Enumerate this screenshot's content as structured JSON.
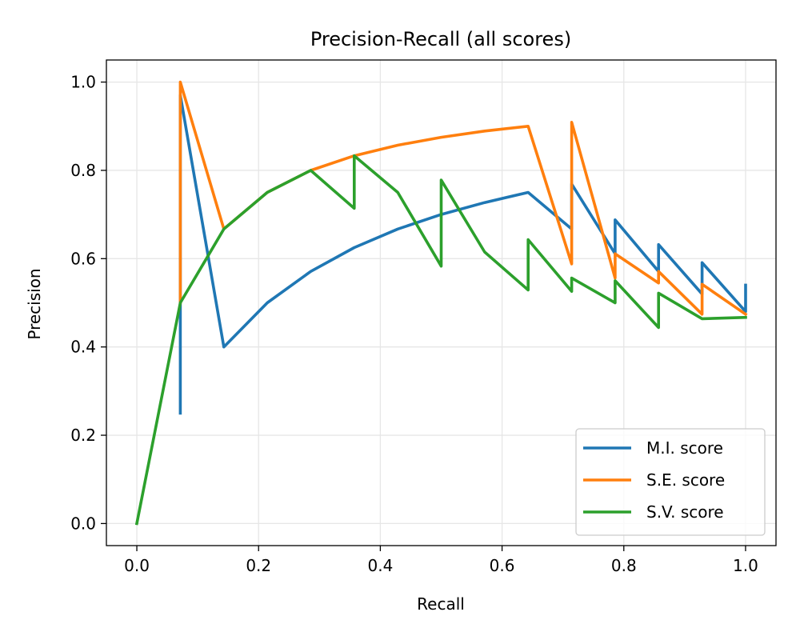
{
  "chart_data": {
    "type": "line",
    "title": "Precision-Recall (all scores)",
    "xlabel": "Recall",
    "ylabel": "Precision",
    "xlim": [
      -0.05,
      1.05
    ],
    "ylim": [
      -0.05,
      1.05
    ],
    "xticks": [
      "0.0",
      "0.2",
      "0.4",
      "0.6",
      "0.8",
      "1.0"
    ],
    "yticks": [
      "0.0",
      "0.2",
      "0.4",
      "0.6",
      "0.8",
      "1.0"
    ],
    "grid": true,
    "legend_position": "lower-right",
    "series": [
      {
        "name": "M.I. score",
        "color": "#1f77b4",
        "x": [
          0.0714,
          0.0714,
          0.0714,
          0.1429,
          0.2143,
          0.2857,
          0.3571,
          0.4286,
          0.5,
          0.5714,
          0.6429,
          0.7143,
          0.7143,
          0.7857,
          0.7857,
          0.8571,
          0.8571,
          0.9286,
          0.9286,
          1.0,
          1.0
        ],
        "y": [
          0.25,
          0.5,
          0.97,
          0.4,
          0.5,
          0.571,
          0.625,
          0.667,
          0.7,
          0.727,
          0.75,
          0.667,
          0.769,
          0.611,
          0.688,
          0.571,
          0.632,
          0.52,
          0.591,
          0.48,
          0.54
        ]
      },
      {
        "name": "S.E. score",
        "color": "#ff7f0e",
        "x": [
          0.0714,
          0.0714,
          0.1429,
          0.2143,
          0.2857,
          0.3571,
          0.4286,
          0.5,
          0.5714,
          0.6429,
          0.7143,
          0.7143,
          0.7857,
          0.7857,
          0.8571,
          0.8571,
          0.9286,
          0.9286,
          1.0
        ],
        "y": [
          0.5,
          1.0,
          0.667,
          0.75,
          0.8,
          0.833,
          0.857,
          0.875,
          0.889,
          0.9,
          0.588,
          0.909,
          0.556,
          0.611,
          0.545,
          0.571,
          0.474,
          0.542,
          0.474
        ]
      },
      {
        "name": "S.V. score",
        "color": "#2ca02c",
        "x": [
          0.0,
          0.0714,
          0.1429,
          0.2143,
          0.2857,
          0.3571,
          0.3571,
          0.4286,
          0.5,
          0.5,
          0.5714,
          0.6429,
          0.6429,
          0.7143,
          0.7143,
          0.7857,
          0.7857,
          0.8571,
          0.8571,
          0.9286,
          1.0
        ],
        "y": [
          0.0,
          0.5,
          0.667,
          0.75,
          0.8,
          0.714,
          0.833,
          0.75,
          0.583,
          0.778,
          0.615,
          0.529,
          0.643,
          0.526,
          0.556,
          0.5,
          0.55,
          0.444,
          0.522,
          0.464,
          0.467
        ]
      }
    ]
  }
}
